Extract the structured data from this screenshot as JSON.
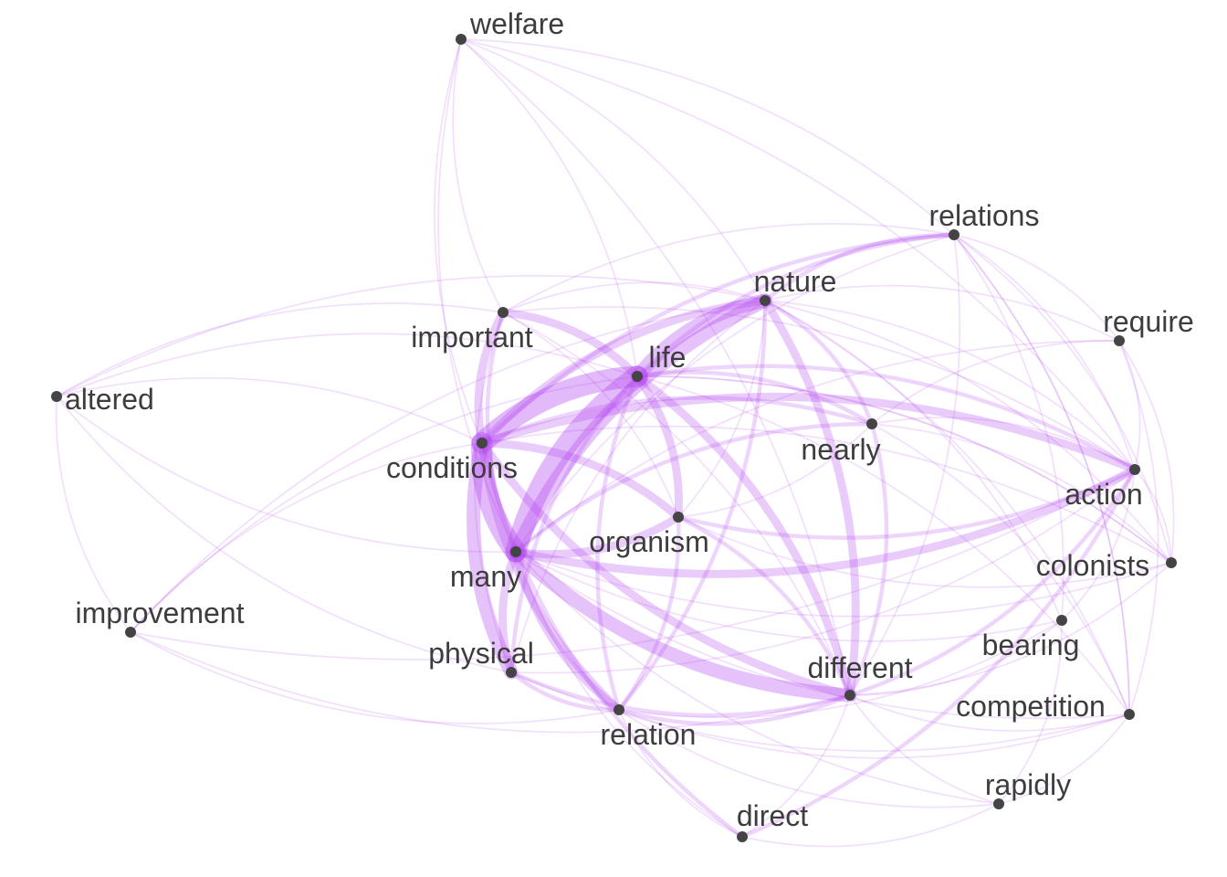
{
  "edge_color": "#b042f0",
  "node_color": "#444444",
  "label_color": "#3d3d3d",
  "nodes": [
    {
      "id": "welfare",
      "label": "welfare"
    },
    {
      "id": "relations",
      "label": "relations"
    },
    {
      "id": "nature",
      "label": "nature"
    },
    {
      "id": "require",
      "label": "require"
    },
    {
      "id": "important",
      "label": "important"
    },
    {
      "id": "life",
      "label": "life"
    },
    {
      "id": "altered",
      "label": "altered"
    },
    {
      "id": "nearly",
      "label": "nearly"
    },
    {
      "id": "conditions",
      "label": "conditions"
    },
    {
      "id": "action",
      "label": "action"
    },
    {
      "id": "organism",
      "label": "organism"
    },
    {
      "id": "many",
      "label": "many"
    },
    {
      "id": "colonists",
      "label": "colonists"
    },
    {
      "id": "improvement",
      "label": "improvement"
    },
    {
      "id": "bearing",
      "label": "bearing"
    },
    {
      "id": "physical",
      "label": "physical"
    },
    {
      "id": "different",
      "label": "different"
    },
    {
      "id": "competition",
      "label": "competition"
    },
    {
      "id": "relation",
      "label": "relation"
    },
    {
      "id": "rapidly",
      "label": "rapidly"
    },
    {
      "id": "direct",
      "label": "direct"
    }
  ],
  "edges": [
    [
      "conditions",
      "life",
      5
    ],
    [
      "conditions",
      "many",
      5
    ],
    [
      "life",
      "many",
      5
    ],
    [
      "life",
      "nature",
      4
    ],
    [
      "nature",
      "many",
      4
    ],
    [
      "conditions",
      "nature",
      3
    ],
    [
      "conditions",
      "physical",
      4
    ],
    [
      "conditions",
      "organism",
      3
    ],
    [
      "life",
      "organism",
      3
    ],
    [
      "many",
      "different",
      4
    ],
    [
      "conditions",
      "different",
      3
    ],
    [
      "nature",
      "different",
      3
    ],
    [
      "life",
      "different",
      3
    ],
    [
      "many",
      "organism",
      3
    ],
    [
      "conditions",
      "relation",
      3
    ],
    [
      "many",
      "relation",
      3
    ],
    [
      "many",
      "physical",
      3
    ],
    [
      "conditions",
      "important",
      3
    ],
    [
      "life",
      "important",
      3
    ],
    [
      "important",
      "many",
      2
    ],
    [
      "conditions",
      "action",
      3
    ],
    [
      "many",
      "action",
      3
    ],
    [
      "life",
      "action",
      2
    ],
    [
      "relations",
      "nature",
      2
    ],
    [
      "relations",
      "life",
      2
    ],
    [
      "relations",
      "conditions",
      2
    ],
    [
      "relations",
      "important",
      1
    ],
    [
      "nature",
      "nearly",
      2
    ],
    [
      "life",
      "nearly",
      2
    ],
    [
      "conditions",
      "nearly",
      2
    ],
    [
      "nearly",
      "different",
      2
    ],
    [
      "nearly",
      "many",
      2
    ],
    [
      "nearly",
      "action",
      1
    ],
    [
      "different",
      "relation",
      2
    ],
    [
      "different",
      "physical",
      2
    ],
    [
      "different",
      "organism",
      2
    ],
    [
      "different",
      "action",
      2
    ],
    [
      "different",
      "direct",
      1
    ],
    [
      "different",
      "competition",
      1
    ],
    [
      "different",
      "bearing",
      1
    ],
    [
      "different",
      "colonists",
      1
    ],
    [
      "different",
      "rapidly",
      1
    ],
    [
      "relation",
      "physical",
      2
    ],
    [
      "relation",
      "direct",
      1
    ],
    [
      "relation",
      "organism",
      2
    ],
    [
      "relation",
      "life",
      2
    ],
    [
      "relation",
      "nature",
      2
    ],
    [
      "direct",
      "conditions",
      2
    ],
    [
      "direct",
      "many",
      1
    ],
    [
      "direct",
      "action",
      2
    ],
    [
      "direct",
      "rapidly",
      1
    ],
    [
      "physical",
      "life",
      2
    ],
    [
      "physical",
      "nature",
      1
    ],
    [
      "physical",
      "action",
      1
    ],
    [
      "physical",
      "competition",
      1
    ],
    [
      "organism",
      "action",
      2
    ],
    [
      "organism",
      "nature",
      1
    ],
    [
      "organism",
      "colonists",
      1
    ],
    [
      "action",
      "nature",
      1
    ],
    [
      "action",
      "relations",
      1
    ],
    [
      "action",
      "colonists",
      1
    ],
    [
      "action",
      "require",
      1
    ],
    [
      "action",
      "bearing",
      1
    ],
    [
      "colonists",
      "many",
      1
    ],
    [
      "colonists",
      "conditions",
      1
    ],
    [
      "colonists",
      "life",
      1
    ],
    [
      "bearing",
      "many",
      1
    ],
    [
      "bearing",
      "nature",
      1
    ],
    [
      "bearing",
      "relations",
      1
    ],
    [
      "competition",
      "many",
      1
    ],
    [
      "competition",
      "relations",
      1
    ],
    [
      "competition",
      "life",
      1
    ],
    [
      "competition",
      "require",
      1
    ],
    [
      "rapidly",
      "many",
      1
    ],
    [
      "rapidly",
      "bearing",
      1
    ],
    [
      "rapidly",
      "competition",
      1
    ],
    [
      "require",
      "relations",
      1
    ],
    [
      "require",
      "nature",
      1
    ],
    [
      "require",
      "nearly",
      1
    ],
    [
      "require",
      "colonists",
      1
    ],
    [
      "require",
      "many",
      1
    ],
    [
      "welfare",
      "important",
      1
    ],
    [
      "welfare",
      "life",
      1
    ],
    [
      "welfare",
      "nature",
      1
    ],
    [
      "welfare",
      "relations",
      1
    ],
    [
      "welfare",
      "conditions",
      1
    ],
    [
      "welfare",
      "many",
      1
    ],
    [
      "welfare",
      "action",
      1
    ],
    [
      "welfare",
      "different",
      1
    ],
    [
      "altered",
      "conditions",
      1
    ],
    [
      "altered",
      "life",
      1
    ],
    [
      "altered",
      "important",
      1
    ],
    [
      "altered",
      "nature",
      1
    ],
    [
      "altered",
      "physical",
      1
    ],
    [
      "altered",
      "many",
      1
    ],
    [
      "altered",
      "improvement",
      1
    ],
    [
      "improvement",
      "conditions",
      1
    ],
    [
      "improvement",
      "life",
      1
    ],
    [
      "improvement",
      "different",
      1
    ],
    [
      "improvement",
      "nature",
      1
    ],
    [
      "improvement",
      "action",
      1
    ],
    [
      "improvement",
      "relation",
      1
    ],
    [
      "important",
      "nature",
      1
    ],
    [
      "important",
      "different",
      1
    ],
    [
      "important",
      "action",
      1
    ],
    [
      "important",
      "organism",
      1
    ],
    [
      "important",
      "physical",
      1
    ],
    [
      "relations",
      "different",
      1
    ],
    [
      "relations",
      "many",
      1
    ],
    [
      "relations",
      "colonists",
      1
    ],
    [
      "relations",
      "competition",
      1
    ],
    [
      "nearly",
      "organism",
      1
    ],
    [
      "nearly",
      "colonists",
      1
    ],
    [
      "nearly",
      "competition",
      1
    ],
    [
      "nature",
      "colonists",
      1
    ],
    [
      "nature",
      "competition",
      1
    ],
    [
      "life",
      "colonists",
      1
    ],
    [
      "relation",
      "competition",
      1
    ],
    [
      "relation",
      "bearing",
      1
    ],
    [
      "relation",
      "rapidly",
      1
    ]
  ]
}
